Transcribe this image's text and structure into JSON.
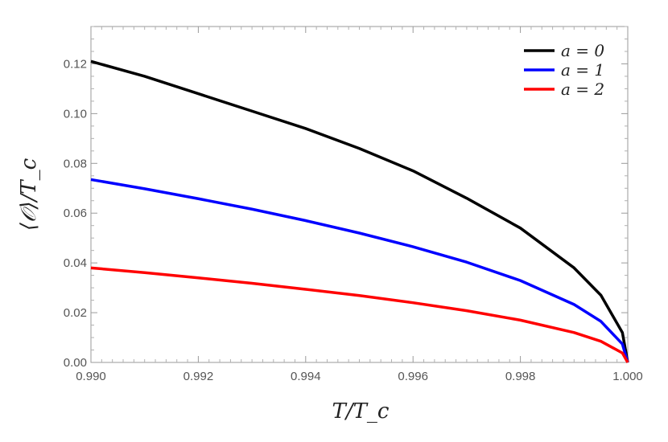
{
  "chart_data": {
    "type": "line",
    "xlabel": "T/T_c",
    "ylabel": "⟨𝒪⟩/T_c",
    "xlim": [
      0.99,
      1.0
    ],
    "ylim": [
      0.0,
      0.135
    ],
    "x_ticks": [
      "0.990",
      "0.992",
      "0.994",
      "0.996",
      "0.998",
      "1.000"
    ],
    "y_ticks": [
      "0.00",
      "0.02",
      "0.04",
      "0.06",
      "0.08",
      "0.10",
      "0.12"
    ],
    "grid": false,
    "legend_position": "top-right",
    "series": [
      {
        "name": "a = 0",
        "color": "#000000",
        "x": [
          0.99,
          0.991,
          0.992,
          0.993,
          0.994,
          0.995,
          0.996,
          0.997,
          0.998,
          0.999,
          0.9995,
          0.9999,
          1.0
        ],
        "values": [
          0.121,
          0.115,
          0.108,
          0.101,
          0.094,
          0.086,
          0.077,
          0.066,
          0.054,
          0.038,
          0.027,
          0.012,
          0.0
        ]
      },
      {
        "name": "a = 1",
        "color": "#0000ff",
        "x": [
          0.99,
          0.991,
          0.992,
          0.993,
          0.994,
          0.995,
          0.996,
          0.997,
          0.998,
          0.999,
          0.9995,
          0.9999,
          1.0
        ],
        "values": [
          0.0735,
          0.0698,
          0.0658,
          0.0616,
          0.057,
          0.052,
          0.0465,
          0.0403,
          0.0329,
          0.0233,
          0.0165,
          0.0074,
          0.0
        ]
      },
      {
        "name": "a = 2",
        "color": "#ff0000",
        "x": [
          0.99,
          0.991,
          0.992,
          0.993,
          0.994,
          0.995,
          0.996,
          0.997,
          0.998,
          0.999,
          0.9995,
          0.9999,
          1.0
        ],
        "values": [
          0.038,
          0.0361,
          0.034,
          0.0318,
          0.0294,
          0.0269,
          0.024,
          0.0208,
          0.017,
          0.012,
          0.0085,
          0.0038,
          0.0
        ]
      }
    ]
  }
}
